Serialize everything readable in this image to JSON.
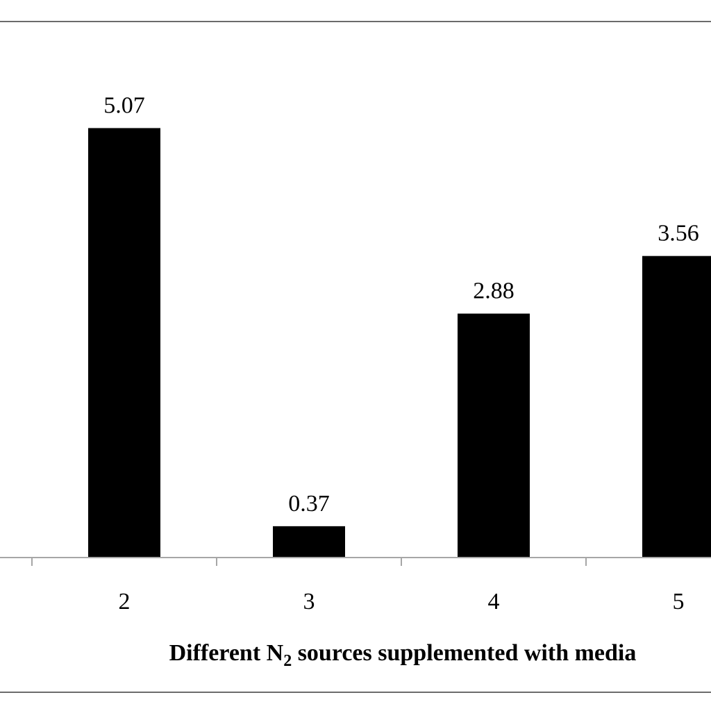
{
  "chart_data": {
    "type": "bar",
    "categories": [
      "2",
      "3",
      "4",
      "5"
    ],
    "values": [
      5.07,
      0.37,
      2.88,
      3.56
    ],
    "data_labels": [
      "5.07",
      "0.37",
      "2.88",
      "3.56"
    ],
    "title": "",
    "xlabel": "Different N2 sources supplemented with media",
    "xlabel_parts": {
      "before": "Different N",
      "subscript": "2",
      "after": " sources supplemented with media"
    },
    "ylabel": "",
    "ylim": [
      0,
      5.6
    ],
    "grid": false,
    "legend": "none",
    "bar_color": "#000000",
    "axis_color": "#a6a6a6"
  }
}
